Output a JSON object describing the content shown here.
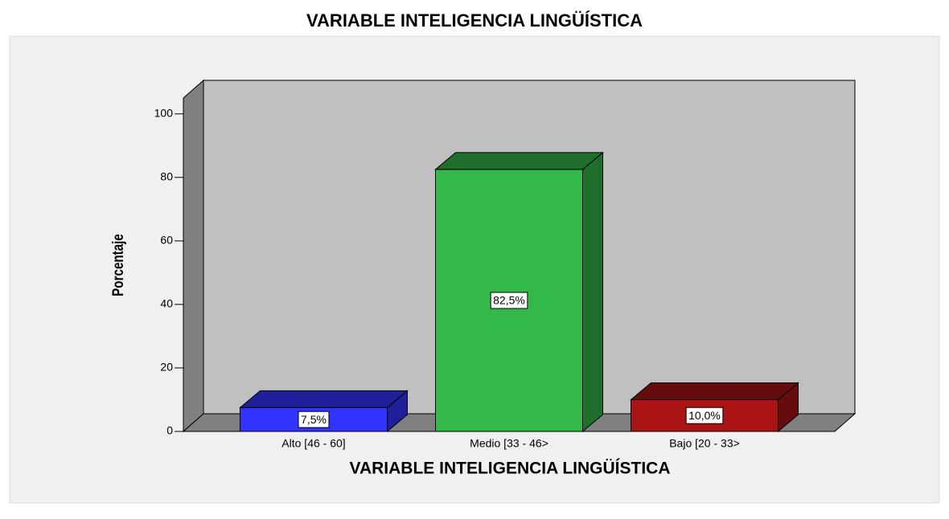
{
  "chart_data": {
    "type": "bar3d",
    "title": "VARIABLE INTELIGENCIA LINGÜÍSTICA",
    "x_label": "VARIABLE INTELIGENCIA LINGÜÍSTICA",
    "y_label": "Porcentaje",
    "categories": [
      "Alto [46 - 60]",
      "Medio [33 - 46>",
      "Bajo [20 - 33>"
    ],
    "values": [
      7.5,
      82.5,
      10.0
    ],
    "value_labels": [
      "7,5%",
      "82,5%",
      "10,0%"
    ],
    "colors": [
      "#3333ff",
      "#33b84a",
      "#aa1414"
    ],
    "ylim": [
      0,
      105
    ],
    "yticks": [
      0,
      20,
      40,
      60,
      80,
      100
    ]
  }
}
